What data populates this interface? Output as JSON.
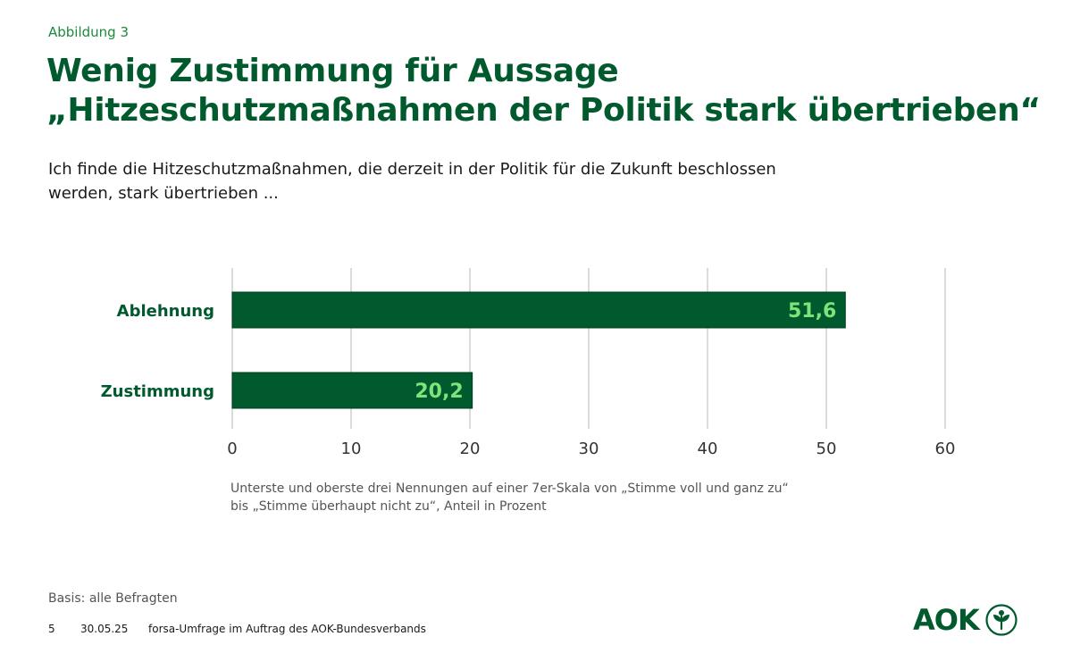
{
  "figure_label": "Abbildung 3",
  "title_lines": [
    "Wenig Zustimmung für Aussage",
    "„Hitzeschutzmaßnahmen der Politik stark übertrieben“"
  ],
  "question_lines": [
    "Ich finde die Hitzeschutzmaßnahmen, die derzeit in der Politik für die Zukunft beschlossen",
    "werden, stark übertrieben ..."
  ],
  "chart_data": {
    "type": "bar",
    "orientation": "horizontal",
    "categories": [
      "Ablehnung",
      "Zustimmung"
    ],
    "values": [
      51.6,
      20.2
    ],
    "value_labels": [
      "51,6",
      "20,2"
    ],
    "xlim": [
      0,
      60
    ],
    "xticks": [
      0,
      10,
      20,
      30,
      40,
      50,
      60
    ],
    "xtick_labels": [
      "0",
      "10",
      "20",
      "30",
      "40",
      "50",
      "60"
    ],
    "grid": true,
    "title": "",
    "xlabel": "",
    "ylabel": ""
  },
  "note_lines": [
    "Unterste und oberste drei Nennungen auf einer 7er-Skala von „Stimme voll und ganz zu“",
    "bis „Stimme überhaupt nicht zu“, Anteil in Prozent"
  ],
  "basis": "Basis: alle Befragten",
  "footer": {
    "page": "5",
    "date": "30.05.25",
    "source": "forsa-Umfrage im Auftrag des AOK-Bundesverbands"
  },
  "logo_text": "AOK",
  "colors": {
    "bar": "#005a2e",
    "bar_label": "#7ee47a",
    "title": "#005a2e",
    "accent": "#1c8a3c",
    "grid": "#cfcfcf"
  }
}
